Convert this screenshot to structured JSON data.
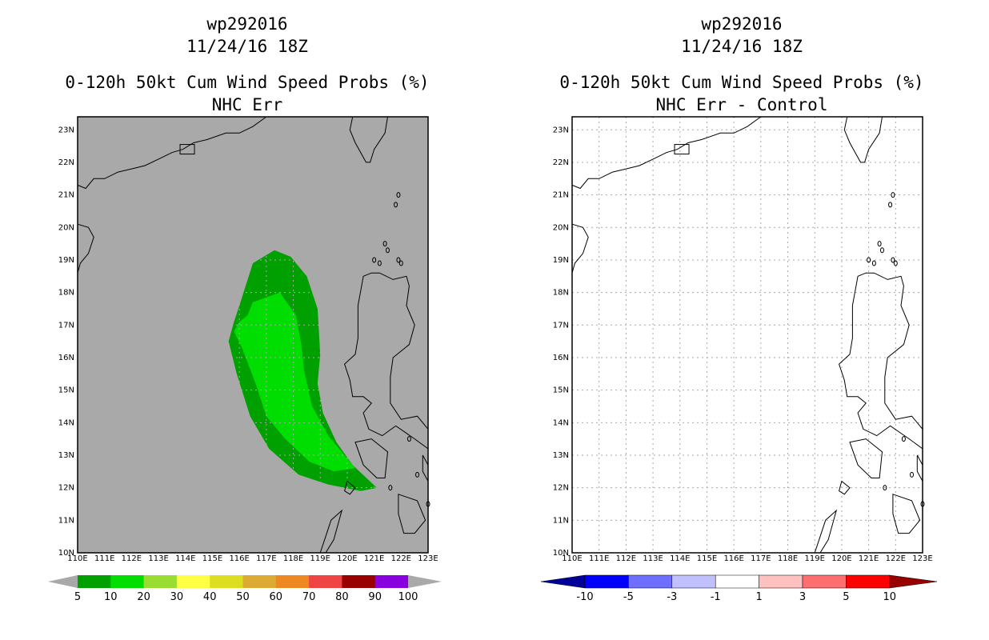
{
  "left_panel": {
    "storm_id": "wp292016",
    "datetime": "11/24/16 18Z",
    "product": "0-120h 50kt Cum Wind Speed Probs (%)",
    "subtitle": "NHC Err",
    "background_color": "#a9a9a9",
    "colorbar": {
      "labels": [
        "5",
        "10",
        "20",
        "30",
        "40",
        "50",
        "60",
        "70",
        "80",
        "90",
        "100"
      ],
      "colors": [
        "#00a000",
        "#00dd00",
        "#99dd33",
        "#ffff44",
        "#dddd22",
        "#ddaa33",
        "#ee8822",
        "#ee4444",
        "#990000",
        "#8800dd"
      ],
      "end_cap_color": "#a9a9a9"
    }
  },
  "right_panel": {
    "storm_id": "wp292016",
    "datetime": "11/24/16 18Z",
    "product": "0-120h 50kt Cum Wind Speed Probs (%)",
    "subtitle": "NHC Err - Control",
    "background_color": "#ffffff",
    "colorbar": {
      "labels": [
        "-10",
        "-5",
        "-3",
        "-1",
        "1",
        "3",
        "5",
        "10"
      ],
      "colors": [
        "#0000ff",
        "#6e6eff",
        "#c0c0ff",
        "#ffffff",
        "#ffc0c0",
        "#ff6e6e",
        "#ff0000"
      ],
      "low_cap_color": "#000099",
      "high_cap_color": "#990000"
    }
  },
  "map": {
    "lon_labels": [
      "110E",
      "111E",
      "112E",
      "113E",
      "114E",
      "115E",
      "116E",
      "117E",
      "118E",
      "119E",
      "120E",
      "121E",
      "122E",
      "123E"
    ],
    "lat_labels": [
      "10N",
      "11N",
      "12N",
      "13N",
      "14N",
      "15N",
      "16N",
      "17N",
      "18N",
      "19N",
      "20N",
      "21N",
      "22N",
      "23N"
    ],
    "lon_range": [
      110,
      123
    ],
    "lat_range": [
      10,
      23.4
    ]
  },
  "probability_contours": [
    {
      "level": 5,
      "color": "#00a000",
      "polygon": [
        [
          115.8,
          17.1
        ],
        [
          116.0,
          17.6
        ],
        [
          116.5,
          18.9
        ],
        [
          117.3,
          19.3
        ],
        [
          117.9,
          19.1
        ],
        [
          118.5,
          18.5
        ],
        [
          118.9,
          17.5
        ],
        [
          119.0,
          16.1
        ],
        [
          118.9,
          15.2
        ],
        [
          119.1,
          14.3
        ],
        [
          119.6,
          13.4
        ],
        [
          120.2,
          12.7
        ],
        [
          121.1,
          12.0
        ],
        [
          120.5,
          11.9
        ],
        [
          119.3,
          12.1
        ],
        [
          118.2,
          12.4
        ],
        [
          117.1,
          13.2
        ],
        [
          116.4,
          14.2
        ],
        [
          115.9,
          15.5
        ],
        [
          115.6,
          16.5
        ]
      ]
    },
    {
      "level": 10,
      "color": "#00dd00",
      "polygon": [
        [
          116.0,
          17.1
        ],
        [
          116.3,
          17.3
        ],
        [
          116.5,
          17.7
        ],
        [
          117.5,
          18.0
        ],
        [
          118.1,
          17.3
        ],
        [
          118.3,
          16.4
        ],
        [
          118.4,
          15.6
        ],
        [
          118.7,
          14.5
        ],
        [
          119.3,
          13.6
        ],
        [
          120.0,
          12.9
        ],
        [
          120.3,
          12.6
        ],
        [
          119.5,
          12.5
        ],
        [
          118.6,
          12.8
        ],
        [
          117.7,
          13.5
        ],
        [
          117.0,
          14.2
        ],
        [
          116.6,
          15.2
        ],
        [
          116.1,
          16.3
        ],
        [
          115.8,
          16.8
        ]
      ]
    }
  ]
}
